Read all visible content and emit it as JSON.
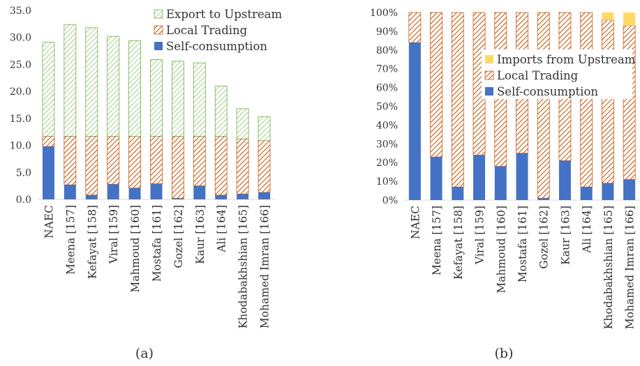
{
  "panels": [
    {
      "caption": "(a)",
      "chart_data": {
        "type": "bar",
        "stacked": true,
        "categories": [
          "NAEC",
          "Meena [157]",
          "Kefayat [158]",
          "Viral [159]",
          "Mahmoud [160]",
          "Mostafa [161]",
          "Gozel [162]",
          "Kaur [163]",
          "Ali [164]",
          "Khodabakhshian [165]",
          "Mohamed Imran [166]"
        ],
        "ylim": [
          0,
          35
        ],
        "yticks": [
          0,
          5,
          10,
          15,
          20,
          25,
          30,
          35
        ],
        "ytick_labels": [
          "0.0",
          "5.0",
          "10.0",
          "15.0",
          "20.0",
          "25.0",
          "30.0",
          "35.0"
        ],
        "series": [
          {
            "name": "Self-consumption",
            "style": "solid",
            "color": "#4472c4",
            "values": [
              9.8,
              2.7,
              0.8,
              2.8,
              2.1,
              2.9,
              0.2,
              2.5,
              0.8,
              1.0,
              1.3
            ]
          },
          {
            "name": "Local Trading",
            "style": "hatch",
            "color": "#c55a11",
            "values": [
              1.9,
              9.0,
              10.9,
              8.9,
              9.6,
              8.8,
              11.5,
              9.2,
              10.9,
              10.2,
              9.6
            ]
          },
          {
            "name": "Export to Upstream",
            "style": "hatch",
            "color": "#70ad47",
            "values": [
              17.4,
              20.7,
              20.1,
              18.5,
              17.7,
              14.2,
              13.9,
              13.6,
              9.3,
              5.6,
              4.4
            ]
          }
        ],
        "legend": {
          "position": "top-right",
          "order": [
            "Export to Upstream",
            "Local Trading",
            "Self-consumption"
          ]
        },
        "grid": false
      }
    },
    {
      "caption": "(b)",
      "chart_data": {
        "type": "bar",
        "stacked": true,
        "categories": [
          "NAEC",
          "Meena [157]",
          "Kefayat [158]",
          "Viral [159]",
          "Mahmoud [160]",
          "Mostafa [161]",
          "Gozel [162]",
          "Kaur [163]",
          "Ali [164]",
          "Khodabakhshian [165]",
          "Mohamed Imran [166]"
        ],
        "ylim": [
          0,
          100
        ],
        "yticks": [
          0,
          10,
          20,
          30,
          40,
          50,
          60,
          70,
          80,
          90,
          100
        ],
        "ytick_labels": [
          "0%",
          "10%",
          "20%",
          "30%",
          "40%",
          "50%",
          "60%",
          "70%",
          "80%",
          "90%",
          "100%"
        ],
        "series": [
          {
            "name": "Self-consumption",
            "style": "solid",
            "color": "#4472c4",
            "values": [
              84,
              23,
              7,
              24,
              18,
              25,
              1,
              21,
              7,
              9,
              11
            ]
          },
          {
            "name": "Local Trading",
            "style": "hatch",
            "color": "#c55a11",
            "values": [
              16,
              77,
              93,
              76,
              82,
              75,
              99,
              79,
              93,
              87,
              82
            ]
          },
          {
            "name": "Imports from Upstream",
            "style": "solid",
            "color": "#ffd966",
            "values": [
              0,
              0,
              0,
              0,
              0,
              0,
              0,
              0,
              0,
              4,
              7
            ]
          }
        ],
        "legend": {
          "position": "center-right",
          "order": [
            "Imports from Upstream",
            "Local Trading",
            "Self-consumption"
          ]
        },
        "grid": false
      }
    }
  ]
}
